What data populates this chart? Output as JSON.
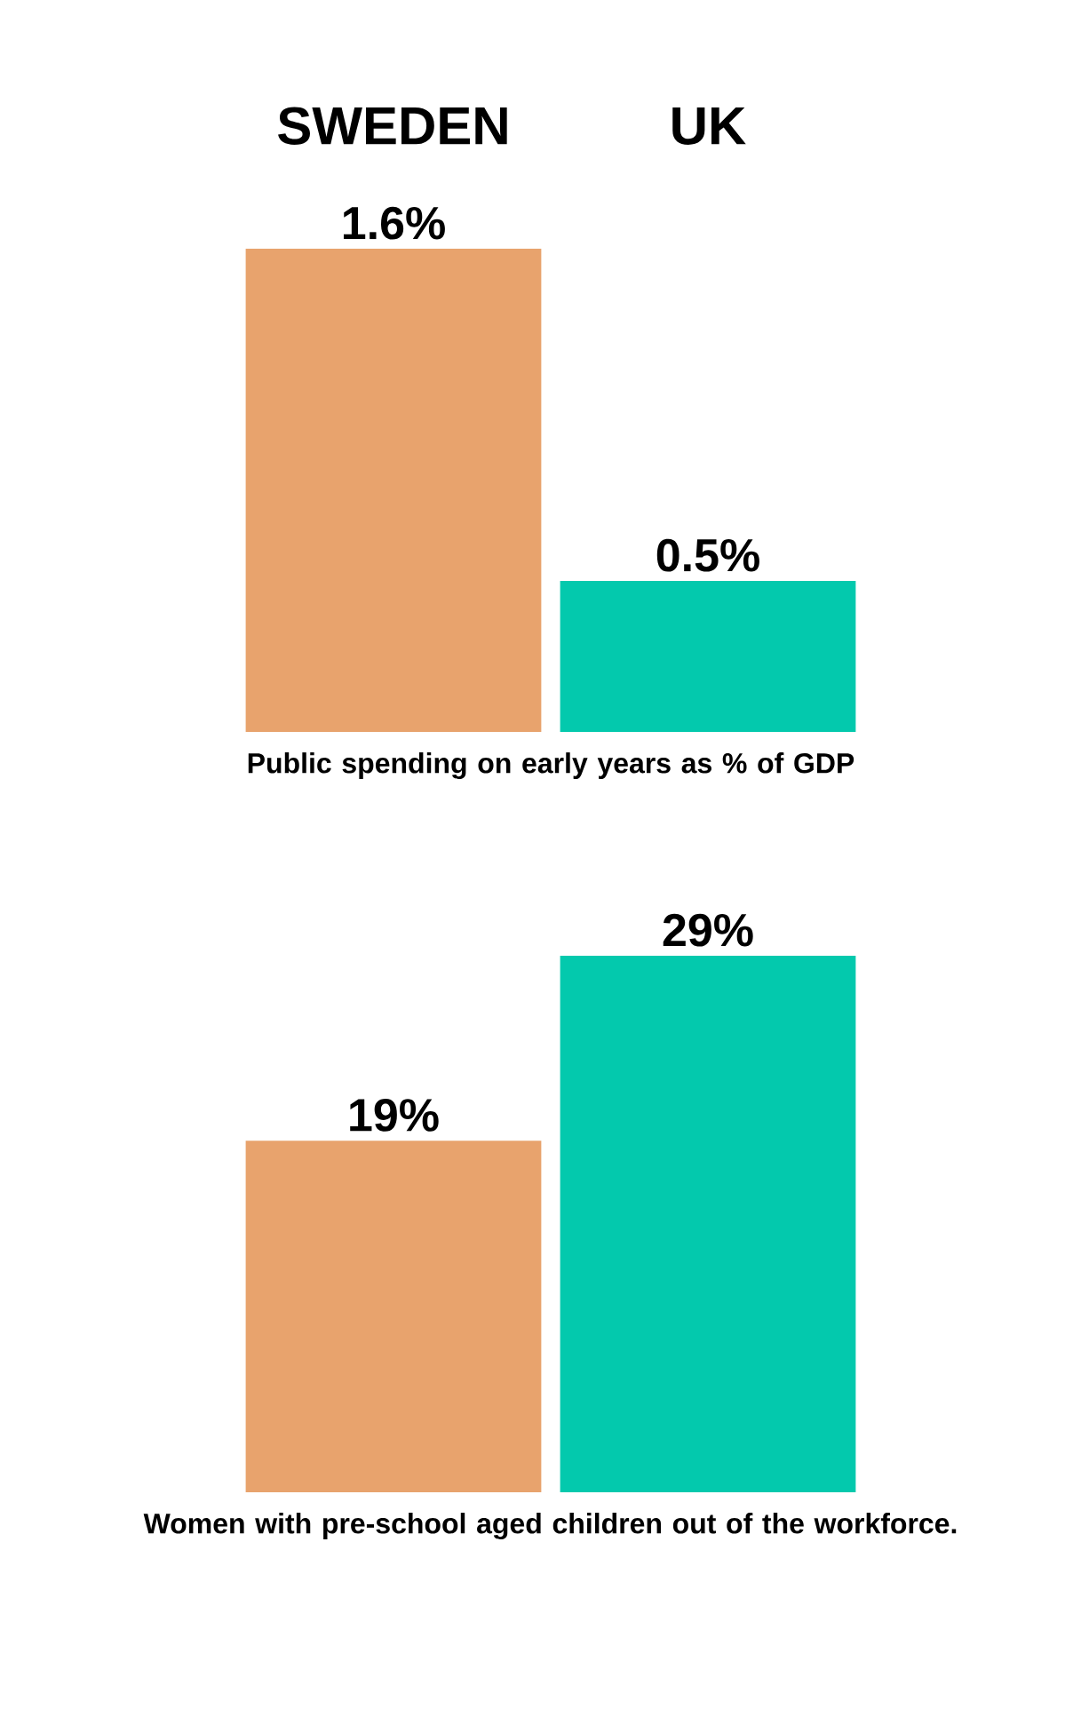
{
  "chart_data": [
    {
      "type": "bar",
      "categories": [
        "SWEDEN",
        "UK"
      ],
      "values": [
        1.6,
        0.5
      ],
      "colors": [
        "#e8a36d",
        "#03c9ad"
      ],
      "value_labels": [
        "1.6%",
        "0.5%"
      ],
      "xlabel": "Public spending on early years as % of GDP",
      "tick_labels": "x"
    },
    {
      "type": "bar",
      "categories": [
        null,
        null
      ],
      "values": [
        19,
        29
      ],
      "colors": [
        "#e8a36d",
        "#03c9ad"
      ],
      "value_labels": [
        "19%",
        "29%"
      ],
      "xlabel": "Women with pre-school aged children out of the workforce.",
      "tick_labels": false
    }
  ]
}
